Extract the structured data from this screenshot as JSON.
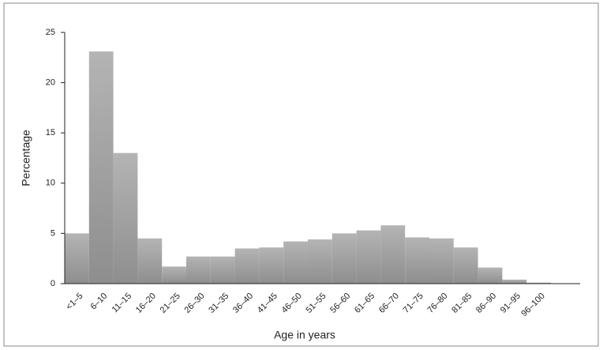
{
  "chart_data": {
    "type": "bar",
    "x_label": "Age in years",
    "y_label": "Percentage",
    "categories": [
      "<1–5",
      "6–10",
      "11–15",
      "16–20",
      "21–25",
      "26–30",
      "31–35",
      "36–40",
      "41–45",
      "46–50",
      "51–55",
      "56–60",
      "61–65",
      "66–70",
      "71–75",
      "76–80",
      "81–85",
      "86–90",
      "91–95",
      "96–100"
    ],
    "values": [
      5,
      23.1,
      13,
      4.5,
      1.7,
      2.7,
      2.7,
      3.5,
      3.6,
      4.2,
      4.4,
      5,
      5.3,
      5.8,
      4.6,
      4.5,
      3.6,
      1.6,
      0.4,
      0.1
    ],
    "color": "#a9a9a9",
    "ylim": [
      0,
      25
    ],
    "yticks": [
      0,
      5,
      10,
      15,
      20,
      25
    ]
  }
}
